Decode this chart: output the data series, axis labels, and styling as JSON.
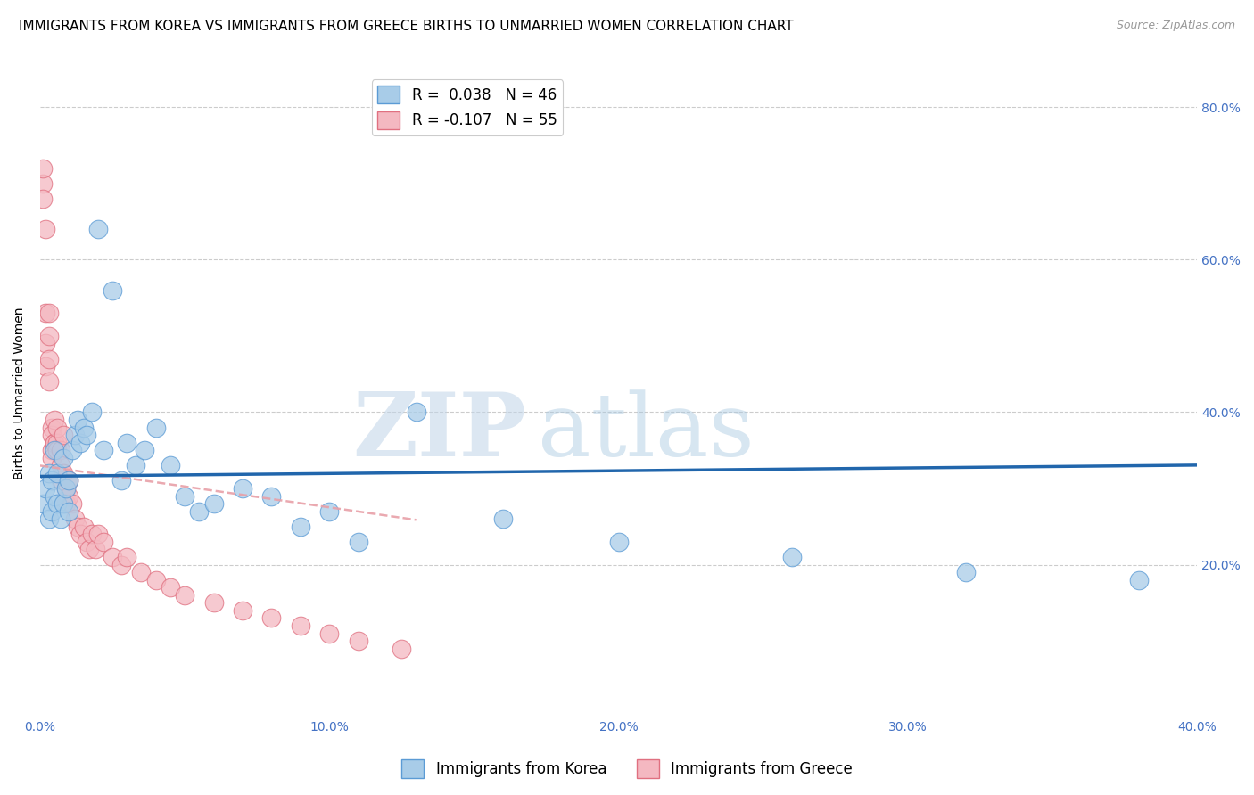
{
  "title": "IMMIGRANTS FROM KOREA VS IMMIGRANTS FROM GREECE BIRTHS TO UNMARRIED WOMEN CORRELATION CHART",
  "source": "Source: ZipAtlas.com",
  "ylabel": "Births to Unmarried Women",
  "xlim": [
    0.0,
    0.4
  ],
  "ylim": [
    0.0,
    0.85
  ],
  "yticks": [
    0.0,
    0.2,
    0.4,
    0.6,
    0.8
  ],
  "xticks": [
    0.0,
    0.1,
    0.2,
    0.3,
    0.4
  ],
  "xtick_labels": [
    "0.0%",
    "10.0%",
    "20.0%",
    "30.0%",
    "40.0%"
  ],
  "ytick_labels_right": [
    "",
    "20.0%",
    "40.0%",
    "60.0%",
    "80.0%"
  ],
  "korea_R": 0.038,
  "korea_N": 46,
  "greece_R": -0.107,
  "greece_N": 55,
  "korea_color": "#a8cce8",
  "greece_color": "#f4b8c1",
  "korea_edge_color": "#5b9bd5",
  "greece_edge_color": "#e07080",
  "korea_line_color": "#2166ac",
  "greece_line_color": "#e8a0a8",
  "watermark_zip": "ZIP",
  "watermark_atlas": "atlas",
  "legend_korea": "Immigrants from Korea",
  "legend_greece": "Immigrants from Greece",
  "korea_x": [
    0.001,
    0.002,
    0.003,
    0.003,
    0.004,
    0.004,
    0.005,
    0.005,
    0.006,
    0.006,
    0.007,
    0.008,
    0.008,
    0.009,
    0.01,
    0.01,
    0.011,
    0.012,
    0.013,
    0.014,
    0.015,
    0.016,
    0.018,
    0.02,
    0.022,
    0.025,
    0.028,
    0.03,
    0.033,
    0.036,
    0.04,
    0.045,
    0.05,
    0.055,
    0.06,
    0.07,
    0.08,
    0.09,
    0.1,
    0.11,
    0.13,
    0.16,
    0.2,
    0.26,
    0.32,
    0.38
  ],
  "korea_y": [
    0.28,
    0.3,
    0.26,
    0.32,
    0.27,
    0.31,
    0.29,
    0.35,
    0.28,
    0.32,
    0.26,
    0.34,
    0.28,
    0.3,
    0.27,
    0.31,
    0.35,
    0.37,
    0.39,
    0.36,
    0.38,
    0.37,
    0.4,
    0.64,
    0.35,
    0.56,
    0.31,
    0.36,
    0.33,
    0.35,
    0.38,
    0.33,
    0.29,
    0.27,
    0.28,
    0.3,
    0.29,
    0.25,
    0.27,
    0.23,
    0.4,
    0.26,
    0.23,
    0.21,
    0.19,
    0.18
  ],
  "greece_x": [
    0.001,
    0.001,
    0.001,
    0.002,
    0.002,
    0.002,
    0.002,
    0.003,
    0.003,
    0.003,
    0.003,
    0.004,
    0.004,
    0.004,
    0.004,
    0.005,
    0.005,
    0.005,
    0.006,
    0.006,
    0.006,
    0.007,
    0.007,
    0.007,
    0.008,
    0.008,
    0.009,
    0.009,
    0.01,
    0.01,
    0.011,
    0.012,
    0.013,
    0.014,
    0.015,
    0.016,
    0.017,
    0.018,
    0.019,
    0.02,
    0.022,
    0.025,
    0.028,
    0.03,
    0.035,
    0.04,
    0.045,
    0.05,
    0.06,
    0.07,
    0.08,
    0.09,
    0.1,
    0.11,
    0.125
  ],
  "greece_y": [
    0.7,
    0.72,
    0.68,
    0.64,
    0.53,
    0.49,
    0.46,
    0.53,
    0.5,
    0.47,
    0.44,
    0.38,
    0.35,
    0.37,
    0.34,
    0.36,
    0.36,
    0.39,
    0.36,
    0.38,
    0.35,
    0.35,
    0.33,
    0.31,
    0.37,
    0.32,
    0.3,
    0.28,
    0.31,
    0.29,
    0.28,
    0.26,
    0.25,
    0.24,
    0.25,
    0.23,
    0.22,
    0.24,
    0.22,
    0.24,
    0.23,
    0.21,
    0.2,
    0.21,
    0.19,
    0.18,
    0.17,
    0.16,
    0.15,
    0.14,
    0.13,
    0.12,
    0.11,
    0.1,
    0.09
  ],
  "title_fontsize": 11,
  "axis_label_fontsize": 10,
  "tick_fontsize": 10,
  "legend_fontsize": 12
}
